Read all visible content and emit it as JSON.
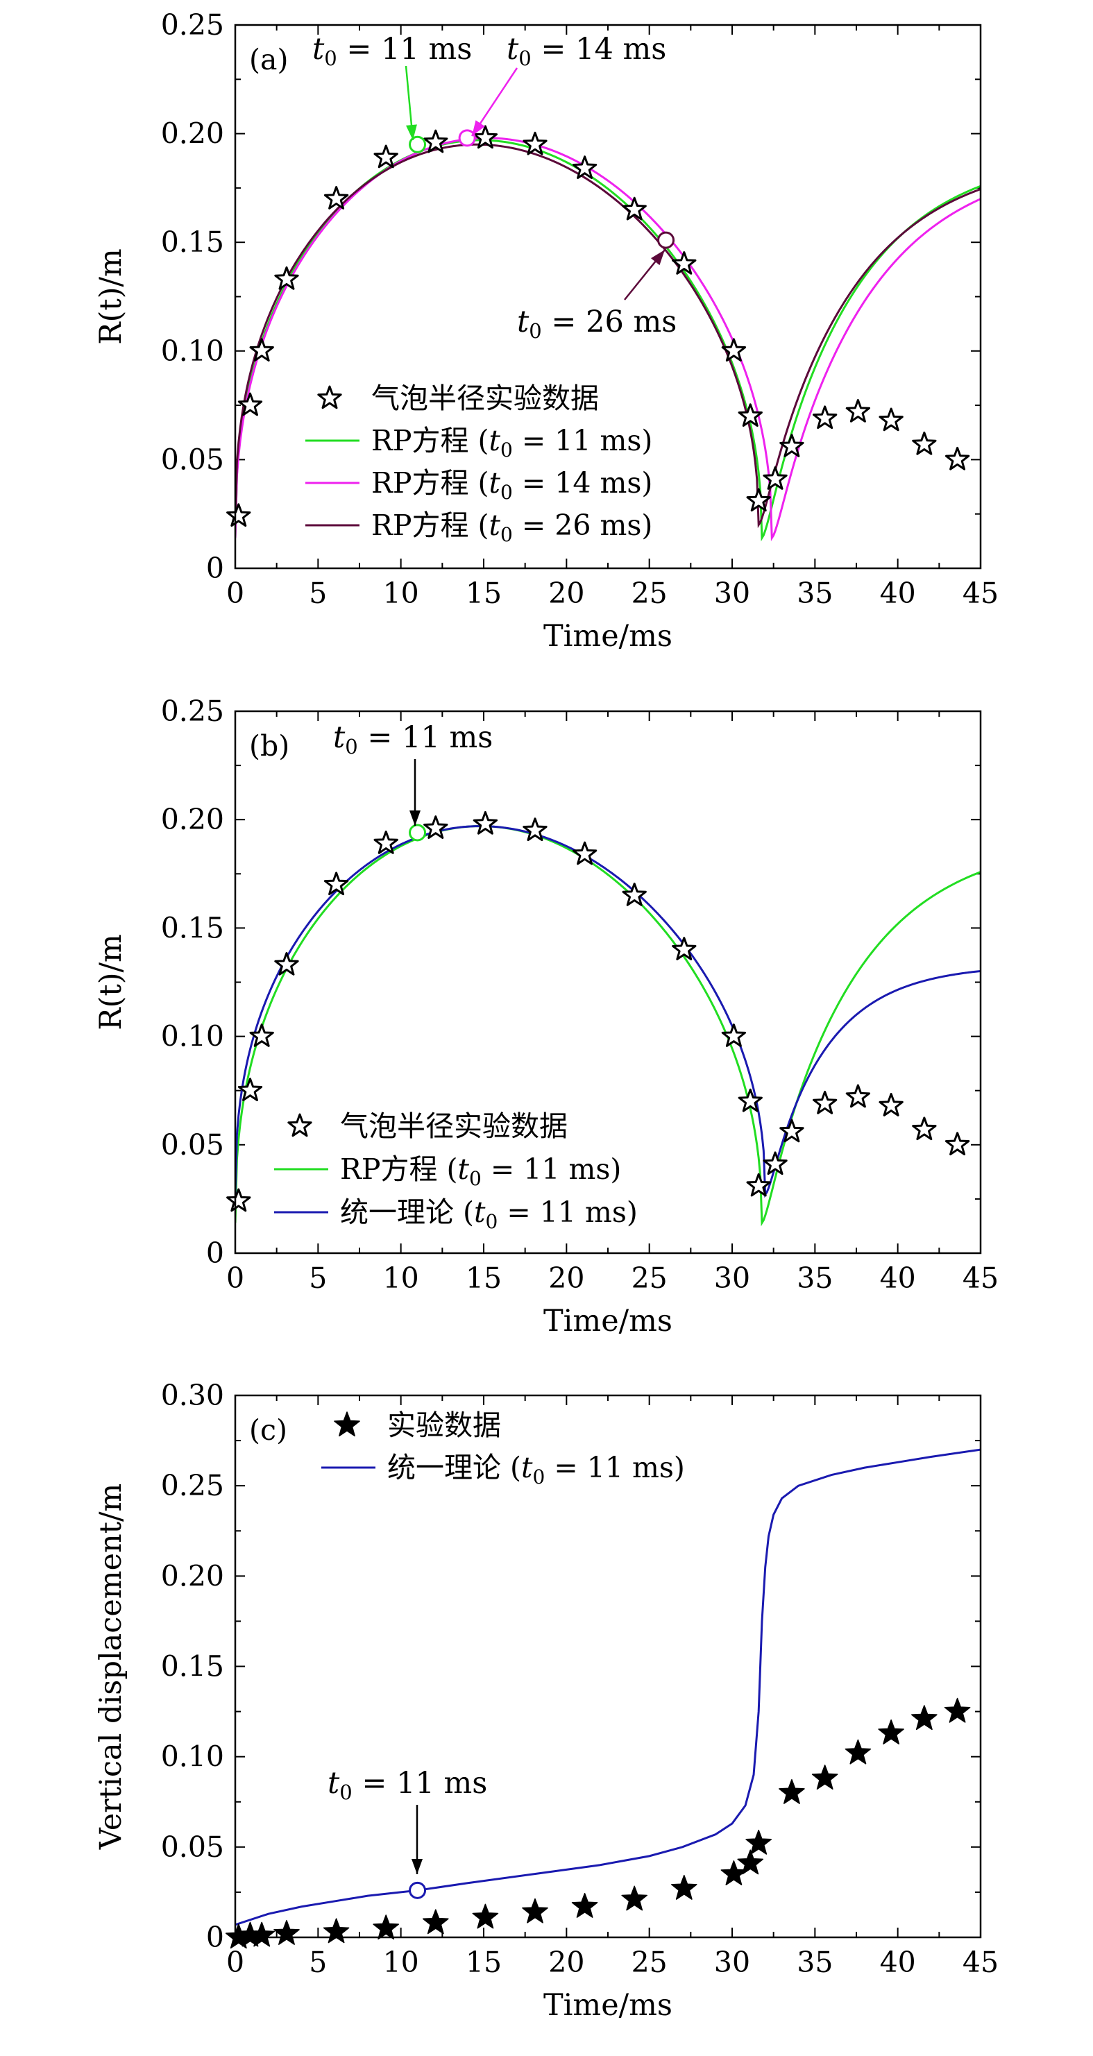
{
  "chart_data": [
    {
      "type": "line",
      "panel_label": "(a)",
      "xlabel": "Time/ms",
      "ylabel": "R(t)/m",
      "xlim": [
        0,
        45
      ],
      "ylim": [
        0,
        0.25
      ],
      "xticks": [
        "0",
        "5",
        "10",
        "15",
        "20",
        "25",
        "30",
        "35",
        "40",
        "45"
      ],
      "yticks": [
        "0",
        "0.05",
        "0.10",
        "0.15",
        "0.20",
        "0.25"
      ],
      "legend_position": "center-left",
      "markers": {
        "name": "气泡半径实验数据",
        "marker": "open-star",
        "x": [
          0.2,
          0.9,
          1.6,
          3.1,
          6.1,
          9.1,
          12.1,
          15.1,
          18.1,
          21.1,
          24.1,
          27.1,
          30.1,
          31.1,
          31.6,
          32.6,
          33.6,
          35.6,
          37.6,
          39.6,
          41.6,
          43.6
        ],
        "y": [
          0.024,
          0.075,
          0.1,
          0.133,
          0.17,
          0.189,
          0.196,
          0.198,
          0.195,
          0.184,
          0.165,
          0.14,
          0.1,
          0.07,
          0.031,
          0.041,
          0.056,
          0.069,
          0.072,
          0.068,
          0.057,
          0.05
        ]
      },
      "series": [
        {
          "name_prefix": "RP方程 (",
          "t0": "11 ms",
          "color": "#22dd22",
          "t_start": 0,
          "t_collapse": 31.8,
          "r_max": 0.197,
          "t_peak": 14.8,
          "r_min": 0.014,
          "r_end": 0.192,
          "tau_rebound": 5.5
        },
        {
          "name_prefix": "RP方程 (",
          "t0": "14 ms",
          "color": "#ee22ee",
          "t_start": 0,
          "t_collapse": 32.4,
          "r_max": 0.198,
          "t_peak": 15.2,
          "r_min": 0.014,
          "r_end": 0.19,
          "tau_rebound": 5.8
        },
        {
          "name_prefix": "RP方程 (",
          "t0": "26 ms",
          "color": "#5c0a3a",
          "t_start": 0,
          "t_collapse": 31.6,
          "r_max": 0.195,
          "t_peak": 14.6,
          "r_min": 0.02,
          "r_end": 0.19,
          "tau_rebound": 5.6
        }
      ],
      "circles": [
        {
          "x": 11,
          "y": 0.195,
          "color": "#22dd22"
        },
        {
          "x": 14,
          "y": 0.198,
          "color": "#ee22ee"
        },
        {
          "x": 26,
          "y": 0.151,
          "color": "#5c0a3a"
        }
      ],
      "annotations": [
        {
          "t0_value": "11 ms",
          "color": "#22dd22",
          "x": 11,
          "y": 0.195
        },
        {
          "t0_value": "14 ms",
          "color": "#ee22ee",
          "x": 14,
          "y": 0.198
        },
        {
          "t0_value": "26 ms",
          "color": "#5c0a3a",
          "x": 26,
          "y": 0.151
        }
      ]
    },
    {
      "type": "line",
      "panel_label": "(b)",
      "xlabel": "Time/ms",
      "ylabel": "R(t)/m",
      "xlim": [
        0,
        45
      ],
      "ylim": [
        0,
        0.25
      ],
      "xticks": [
        "0",
        "5",
        "10",
        "15",
        "20",
        "25",
        "30",
        "35",
        "40",
        "45"
      ],
      "yticks": [
        "0",
        "0.05",
        "0.10",
        "0.15",
        "0.20",
        "0.25"
      ],
      "legend_position": "bottom-left",
      "markers": {
        "name": "气泡半径实验数据",
        "marker": "open-star",
        "x": [
          0.2,
          0.9,
          1.6,
          3.1,
          6.1,
          9.1,
          12.1,
          15.1,
          18.1,
          21.1,
          24.1,
          27.1,
          30.1,
          31.1,
          31.6,
          32.6,
          33.6,
          35.6,
          37.6,
          39.6,
          41.6,
          43.6
        ],
        "y": [
          0.024,
          0.075,
          0.1,
          0.133,
          0.17,
          0.189,
          0.196,
          0.198,
          0.195,
          0.184,
          0.165,
          0.14,
          0.1,
          0.07,
          0.031,
          0.041,
          0.056,
          0.069,
          0.072,
          0.068,
          0.057,
          0.05
        ]
      },
      "series": [
        {
          "name_prefix": "RP方程 (",
          "t0": "11 ms",
          "color": "#22dd22",
          "t_start": 0,
          "t_collapse": 31.8,
          "r_max": 0.197,
          "t_peak": 14.8,
          "r_min": 0.014,
          "r_end": 0.192,
          "tau_rebound": 5.5
        },
        {
          "name_prefix": "统一理论 (",
          "t0": "11 ms",
          "color": "#1a1ab0",
          "t_start": 0,
          "t_collapse": 32.0,
          "r_max": 0.197,
          "t_peak": 14.8,
          "r_min": 0.027,
          "r_end": 0.133,
          "tau_rebound": 3.6
        }
      ],
      "circles": [
        {
          "x": 11,
          "y": 0.194,
          "color": "#22dd22"
        }
      ],
      "annotations": [
        {
          "t0_value": "11 ms",
          "color": "#000000",
          "x": 11,
          "y": 0.194
        }
      ]
    },
    {
      "type": "line",
      "panel_label": "(c)",
      "xlabel": "Time/ms",
      "ylabel": "Vertical displacement/m",
      "xlim": [
        0,
        45
      ],
      "ylim": [
        0,
        0.3
      ],
      "xticks": [
        "0",
        "5",
        "10",
        "15",
        "20",
        "25",
        "30",
        "35",
        "40",
        "45"
      ],
      "yticks": [
        "0",
        "0.05",
        "0.10",
        "0.15",
        "0.20",
        "0.25",
        "0.30"
      ],
      "legend_position": "top-left",
      "markers": {
        "name": "实验数据",
        "marker": "filled-star",
        "x": [
          0.2,
          0.9,
          1.6,
          3.1,
          6.1,
          9.1,
          12.1,
          15.1,
          18.1,
          21.1,
          24.1,
          27.1,
          30.1,
          31.1,
          31.6,
          33.6,
          35.6,
          37.6,
          39.6,
          41.6,
          43.6
        ],
        "y": [
          0.0,
          0.001,
          0.001,
          0.002,
          0.003,
          0.005,
          0.008,
          0.011,
          0.014,
          0.017,
          0.021,
          0.027,
          0.035,
          0.041,
          0.052,
          0.08,
          0.088,
          0.102,
          0.113,
          0.121,
          0.125
        ]
      },
      "series": [
        {
          "name_prefix": "统一理论 (",
          "t0": "11 ms",
          "color": "#1a1ab0",
          "x": [
            0,
            2,
            4,
            6,
            8,
            10,
            11,
            14,
            18,
            22,
            25,
            27,
            29,
            30,
            30.8,
            31.3,
            31.6,
            31.8,
            32.0,
            32.2,
            32.5,
            33.0,
            34.0,
            36,
            38,
            40,
            42,
            45
          ],
          "y": [
            0.007,
            0.013,
            0.017,
            0.02,
            0.023,
            0.025,
            0.026,
            0.03,
            0.035,
            0.04,
            0.045,
            0.05,
            0.057,
            0.063,
            0.073,
            0.09,
            0.125,
            0.175,
            0.205,
            0.222,
            0.234,
            0.243,
            0.25,
            0.256,
            0.26,
            0.263,
            0.266,
            0.27
          ]
        }
      ],
      "circles": [
        {
          "x": 11,
          "y": 0.026,
          "color": "#1a1ab0"
        }
      ],
      "annotations": [
        {
          "t0_value": "11 ms",
          "color": "#000000",
          "x": 11,
          "y": 0.026
        }
      ]
    }
  ]
}
